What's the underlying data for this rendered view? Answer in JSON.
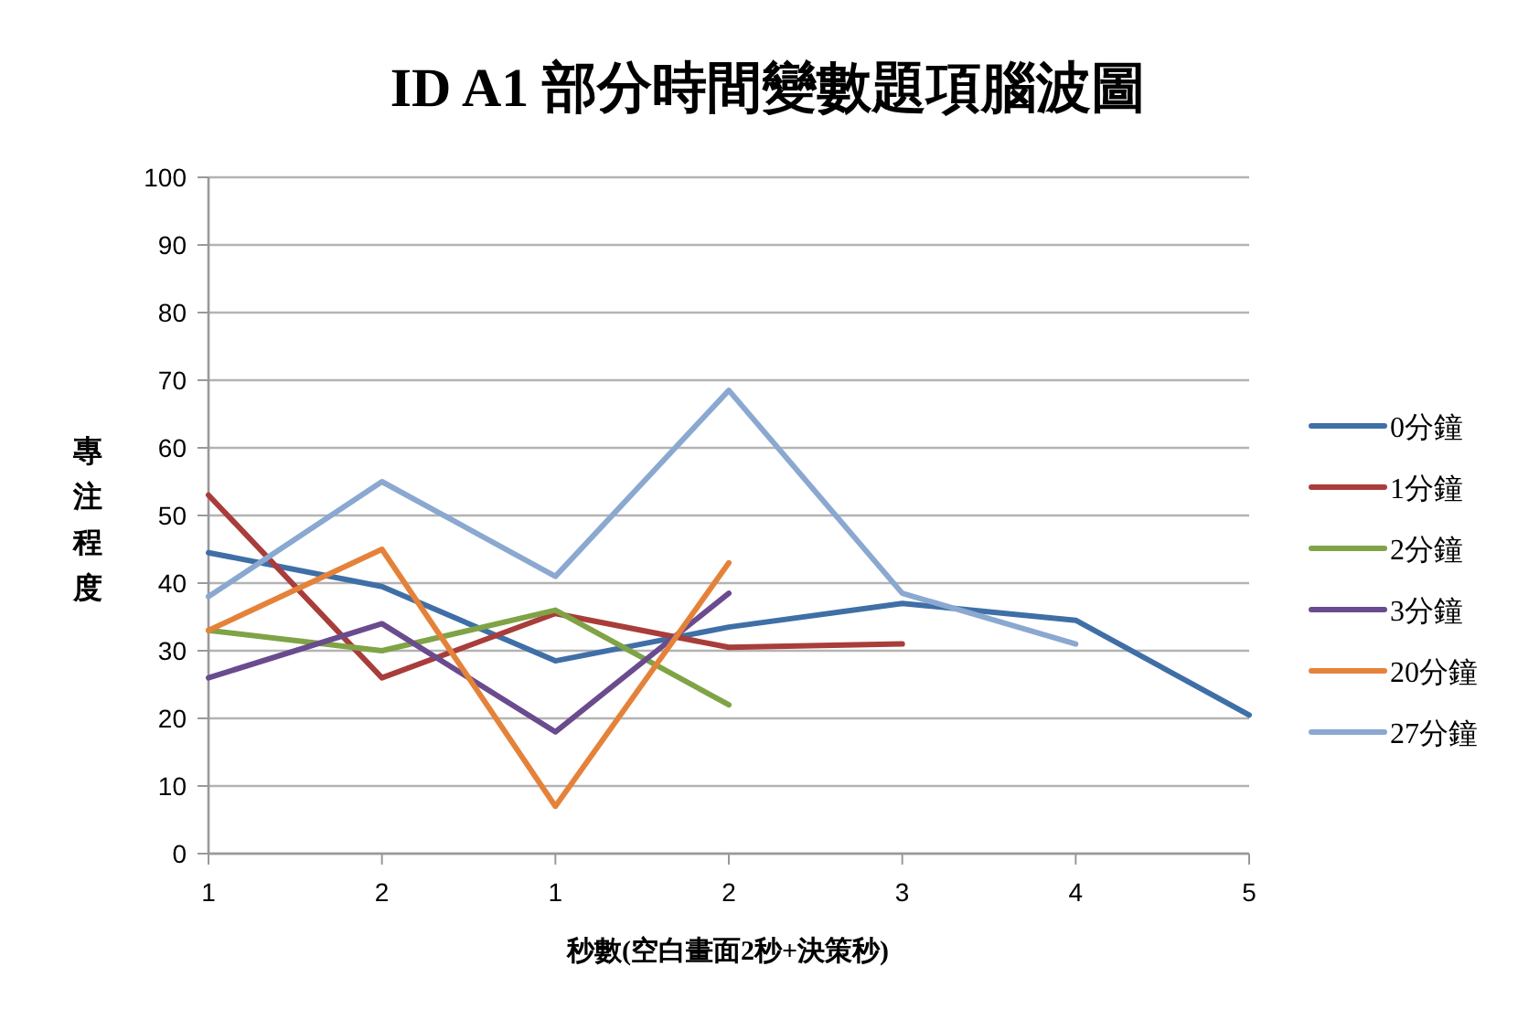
{
  "chart_data": {
    "type": "line",
    "title": "ID A1 部分時間變數題項腦波圖",
    "xlabel": "秒數(空白畫面2秒+決策秒)",
    "ylabel": "專注程度",
    "categories": [
      "1",
      "2",
      "1",
      "2",
      "3",
      "4",
      "5"
    ],
    "series": [
      {
        "name": "0分鐘",
        "color": "#3f6fa6",
        "values": [
          44.5,
          39.5,
          28.5,
          33.5,
          37,
          34.5,
          20.5
        ]
      },
      {
        "name": "1分鐘",
        "color": "#a83d3b",
        "values": [
          53,
          26,
          35.5,
          30.5,
          31,
          null,
          null
        ]
      },
      {
        "name": "2分鐘",
        "color": "#7fa345",
        "values": [
          33,
          30,
          36,
          22,
          null,
          null,
          null
        ]
      },
      {
        "name": "3分鐘",
        "color": "#6a4b8e",
        "values": [
          26,
          34,
          18,
          38.5,
          null,
          null,
          null
        ]
      },
      {
        "name": "20分鐘",
        "color": "#e5823a",
        "values": [
          33,
          45,
          7,
          43,
          null,
          null,
          null
        ]
      },
      {
        "name": "27分鐘",
        "color": "#8aa8d0",
        "values": [
          38,
          55,
          41,
          68.5,
          38.5,
          31,
          null
        ]
      }
    ],
    "ylim": [
      0,
      100
    ],
    "yticks": [
      0,
      10,
      20,
      30,
      40,
      50,
      60,
      70,
      80,
      90,
      100
    ],
    "grid": "y",
    "legend": "right",
    "marker": "none",
    "line_style": "solid"
  }
}
